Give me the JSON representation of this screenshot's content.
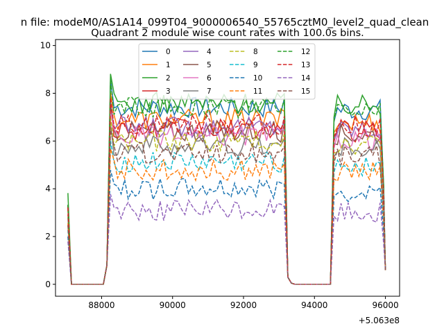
{
  "chart_data": {
    "type": "line",
    "suptitle": "n file: modeM0/AS1A14_099T04_9000006540_55765cztM0_level2_quad_clean",
    "title": "Quadrant 2 module wise count rates with 100.0s bins.",
    "xlabel": "",
    "ylabel": "",
    "offset_label": "+5.063e8",
    "xlim": [
      86700,
      96400
    ],
    "ylim": [
      -0.5,
      10.25
    ],
    "xticks": [
      88000,
      90000,
      92000,
      94000,
      96000
    ],
    "xtick_labels": [
      "88000",
      "90000",
      "92000",
      "94000",
      "96000"
    ],
    "yticks": [
      0,
      2,
      4,
      6,
      8,
      10
    ],
    "ytick_labels": [
      "0",
      "2",
      "4",
      "6",
      "8",
      "10"
    ],
    "grid": false,
    "legend_position": "top-center",
    "legend_columns": 4,
    "segments": [
      {
        "start": 87050,
        "end": 88350,
        "step": 100
      },
      {
        "start": 93150,
        "end": 94650,
        "step": 100
      },
      {
        "start": 94550,
        "end": 96050,
        "step": 100
      }
    ],
    "series": [
      {
        "name": "0",
        "color": "#1f77b4",
        "dash": "solid",
        "level": 7.4
      },
      {
        "name": "1",
        "color": "#ff7f0e",
        "dash": "solid",
        "level": 6.9
      },
      {
        "name": "2",
        "color": "#2ca02c",
        "dash": "solid",
        "level": 7.6
      },
      {
        "name": "3",
        "color": "#d62728",
        "dash": "solid",
        "level": 6.5
      },
      {
        "name": "4",
        "color": "#9467bd",
        "dash": "solid",
        "level": 6.6
      },
      {
        "name": "5",
        "color": "#8c564b",
        "dash": "solid",
        "level": 6.4
      },
      {
        "name": "6",
        "color": "#e377c2",
        "dash": "solid",
        "level": 6.2
      },
      {
        "name": "7",
        "color": "#7f7f7f",
        "dash": "solid",
        "level": 5.8
      },
      {
        "name": "8",
        "color": "#bcbd22",
        "dash": "dashed",
        "level": 6.0
      },
      {
        "name": "9",
        "color": "#17becf",
        "dash": "dashed",
        "level": 5.1
      },
      {
        "name": "10",
        "color": "#1f77b4",
        "dash": "dashed",
        "level": 4.0
      },
      {
        "name": "11",
        "color": "#ff7f0e",
        "dash": "dashed",
        "level": 4.8
      },
      {
        "name": "12",
        "color": "#2ca02c",
        "dash": "dashed",
        "level": 7.4
      },
      {
        "name": "13",
        "color": "#d62728",
        "dash": "dashed",
        "level": 6.7
      },
      {
        "name": "14",
        "color": "#9467bd",
        "dash": "dashed",
        "level": 3.1
      },
      {
        "name": "15",
        "color": "#8c564b",
        "dash": "dashed",
        "level": 5.5
      }
    ]
  }
}
